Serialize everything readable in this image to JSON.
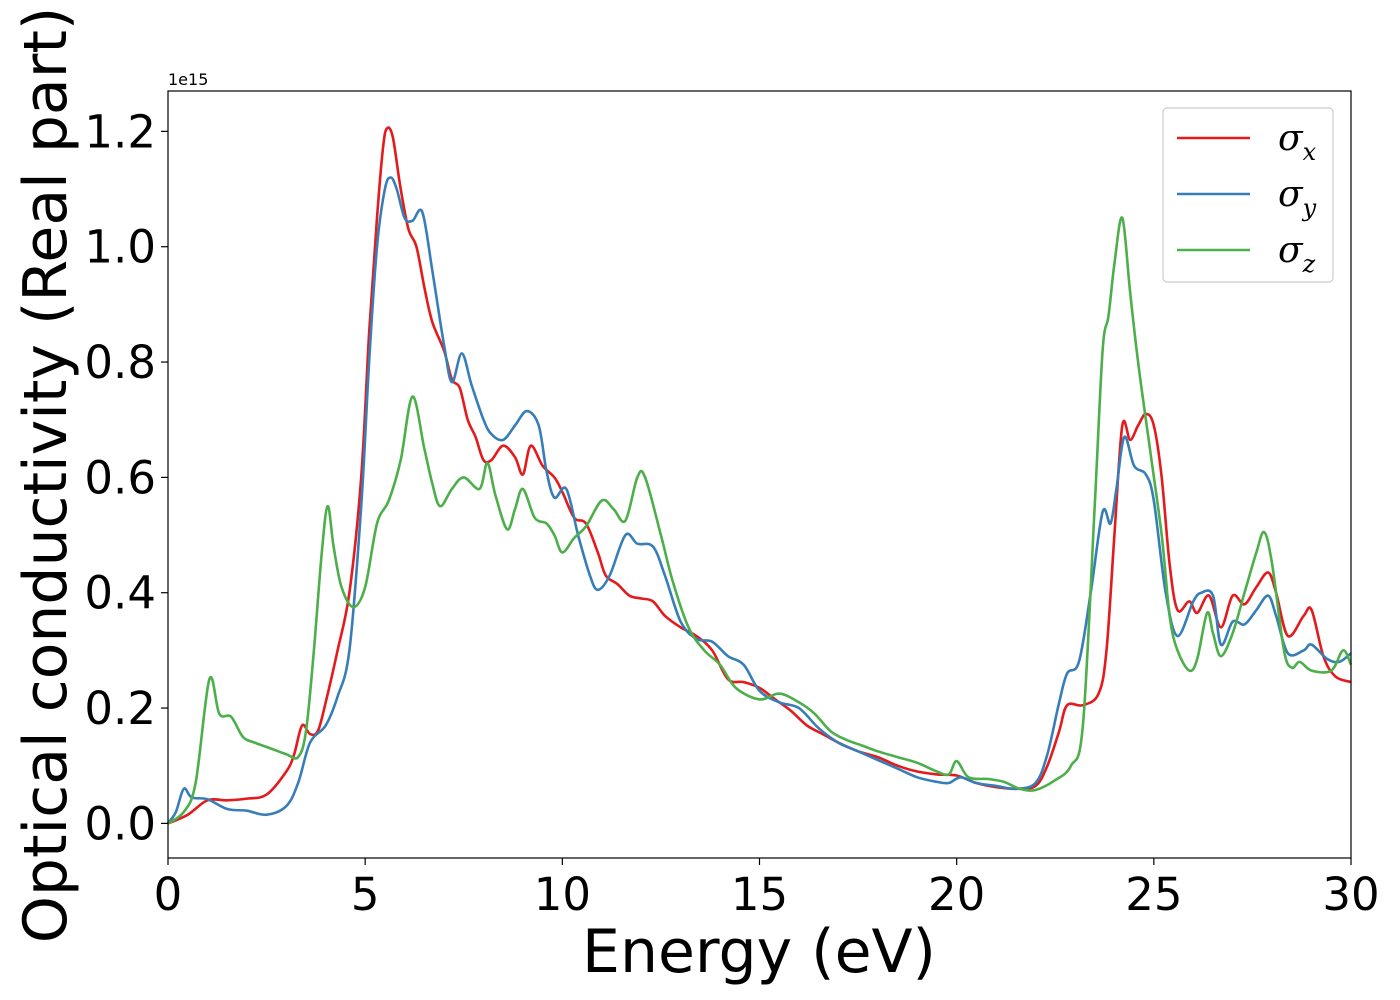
{
  "chart_data": {
    "type": "line",
    "title": "",
    "xlabel": "Energy (eV)",
    "ylabel": "Optical conductivity (Real part)",
    "y_offset_label": "1e15",
    "xlim": [
      0,
      30
    ],
    "ylim": [
      -0.06,
      1.27
    ],
    "grid": false,
    "legend_position": "top-right",
    "x_ticks": [
      0,
      5,
      10,
      15,
      20,
      25,
      30
    ],
    "x_tick_labels": [
      "0",
      "5",
      "10",
      "15",
      "20",
      "25",
      "30"
    ],
    "y_ticks": [
      0.0,
      0.2,
      0.4,
      0.6,
      0.8,
      1.0,
      1.2
    ],
    "y_tick_labels": [
      "0.0",
      "0.2",
      "0.4",
      "0.6",
      "0.8",
      "1.0",
      "1.2"
    ],
    "series": [
      {
        "name": "σx",
        "symbol": "σ",
        "subscript": "x",
        "color": "#e41a1c",
        "points": [
          [
            0,
            0
          ],
          [
            0.5,
            0.015
          ],
          [
            1,
            0.04
          ],
          [
            1.5,
            0.04
          ],
          [
            2,
            0.043
          ],
          [
            2.5,
            0.05
          ],
          [
            3,
            0.09
          ],
          [
            3.2,
            0.12
          ],
          [
            3.4,
            0.17
          ],
          [
            3.6,
            0.155
          ],
          [
            3.8,
            0.16
          ],
          [
            4,
            0.21
          ],
          [
            4.3,
            0.3
          ],
          [
            4.6,
            0.4
          ],
          [
            4.9,
            0.6
          ],
          [
            5.1,
            0.85
          ],
          [
            5.3,
            1.05
          ],
          [
            5.45,
            1.17
          ],
          [
            5.55,
            1.205
          ],
          [
            5.7,
            1.19
          ],
          [
            5.9,
            1.1
          ],
          [
            6.1,
            1.03
          ],
          [
            6.3,
            1.0
          ],
          [
            6.5,
            0.93
          ],
          [
            6.7,
            0.87
          ],
          [
            7,
            0.82
          ],
          [
            7.2,
            0.77
          ],
          [
            7.4,
            0.755
          ],
          [
            7.6,
            0.7
          ],
          [
            7.8,
            0.67
          ],
          [
            8,
            0.63
          ],
          [
            8.2,
            0.63
          ],
          [
            8.5,
            0.655
          ],
          [
            8.8,
            0.635
          ],
          [
            9,
            0.605
          ],
          [
            9.2,
            0.655
          ],
          [
            9.5,
            0.62
          ],
          [
            9.8,
            0.6
          ],
          [
            10,
            0.575
          ],
          [
            10.3,
            0.53
          ],
          [
            10.6,
            0.52
          ],
          [
            10.9,
            0.47
          ],
          [
            11.1,
            0.43
          ],
          [
            11.4,
            0.415
          ],
          [
            11.7,
            0.395
          ],
          [
            12,
            0.39
          ],
          [
            12.3,
            0.385
          ],
          [
            12.6,
            0.36
          ],
          [
            13,
            0.34
          ],
          [
            13.4,
            0.325
          ],
          [
            13.8,
            0.3
          ],
          [
            14.2,
            0.25
          ],
          [
            14.6,
            0.245
          ],
          [
            15,
            0.235
          ],
          [
            15.4,
            0.215
          ],
          [
            15.8,
            0.195
          ],
          [
            16.2,
            0.17
          ],
          [
            16.6,
            0.155
          ],
          [
            17,
            0.14
          ],
          [
            17.5,
            0.125
          ],
          [
            18,
            0.115
          ],
          [
            18.5,
            0.1
          ],
          [
            19,
            0.09
          ],
          [
            19.5,
            0.085
          ],
          [
            20,
            0.083
          ],
          [
            20.5,
            0.07
          ],
          [
            21,
            0.063
          ],
          [
            21.5,
            0.06
          ],
          [
            22,
            0.065
          ],
          [
            22.3,
            0.1
          ],
          [
            22.6,
            0.16
          ],
          [
            22.8,
            0.205
          ],
          [
            23.2,
            0.205
          ],
          [
            23.6,
            0.225
          ],
          [
            23.8,
            0.3
          ],
          [
            24,
            0.5
          ],
          [
            24.2,
            0.69
          ],
          [
            24.4,
            0.665
          ],
          [
            24.6,
            0.69
          ],
          [
            24.8,
            0.71
          ],
          [
            25,
            0.69
          ],
          [
            25.2,
            0.6
          ],
          [
            25.4,
            0.45
          ],
          [
            25.6,
            0.37
          ],
          [
            25.9,
            0.385
          ],
          [
            26.1,
            0.365
          ],
          [
            26.4,
            0.395
          ],
          [
            26.7,
            0.34
          ],
          [
            27,
            0.395
          ],
          [
            27.3,
            0.38
          ],
          [
            27.6,
            0.41
          ],
          [
            27.9,
            0.435
          ],
          [
            28.1,
            0.4
          ],
          [
            28.4,
            0.325
          ],
          [
            28.8,
            0.36
          ],
          [
            29,
            0.37
          ],
          [
            29.3,
            0.29
          ],
          [
            29.6,
            0.255
          ],
          [
            30,
            0.245
          ]
        ]
      },
      {
        "name": "σy",
        "symbol": "σ",
        "subscript": "y",
        "color": "#377eb8",
        "points": [
          [
            0,
            0
          ],
          [
            0.2,
            0.02
          ],
          [
            0.4,
            0.06
          ],
          [
            0.6,
            0.045
          ],
          [
            1,
            0.042
          ],
          [
            1.5,
            0.025
          ],
          [
            2,
            0.022
          ],
          [
            2.5,
            0.015
          ],
          [
            3,
            0.03
          ],
          [
            3.3,
            0.07
          ],
          [
            3.6,
            0.14
          ],
          [
            4,
            0.17
          ],
          [
            4.3,
            0.22
          ],
          [
            4.6,
            0.3
          ],
          [
            4.9,
            0.55
          ],
          [
            5.1,
            0.8
          ],
          [
            5.3,
            1.0
          ],
          [
            5.5,
            1.1
          ],
          [
            5.65,
            1.12
          ],
          [
            5.8,
            1.1
          ],
          [
            6,
            1.05
          ],
          [
            6.2,
            1.045
          ],
          [
            6.45,
            1.06
          ],
          [
            6.7,
            0.96
          ],
          [
            7,
            0.83
          ],
          [
            7.2,
            0.765
          ],
          [
            7.45,
            0.815
          ],
          [
            7.7,
            0.76
          ],
          [
            8,
            0.7
          ],
          [
            8.2,
            0.675
          ],
          [
            8.5,
            0.665
          ],
          [
            8.8,
            0.69
          ],
          [
            9.1,
            0.715
          ],
          [
            9.4,
            0.69
          ],
          [
            9.6,
            0.61
          ],
          [
            9.8,
            0.565
          ],
          [
            10.1,
            0.58
          ],
          [
            10.4,
            0.5
          ],
          [
            10.7,
            0.43
          ],
          [
            10.9,
            0.405
          ],
          [
            11.2,
            0.43
          ],
          [
            11.6,
            0.5
          ],
          [
            11.9,
            0.485
          ],
          [
            12.3,
            0.48
          ],
          [
            12.6,
            0.43
          ],
          [
            13,
            0.35
          ],
          [
            13.4,
            0.32
          ],
          [
            13.8,
            0.315
          ],
          [
            14.2,
            0.29
          ],
          [
            14.6,
            0.275
          ],
          [
            15,
            0.23
          ],
          [
            15.5,
            0.21
          ],
          [
            16,
            0.2
          ],
          [
            16.5,
            0.165
          ],
          [
            17,
            0.14
          ],
          [
            17.5,
            0.125
          ],
          [
            18,
            0.11
          ],
          [
            18.5,
            0.095
          ],
          [
            19,
            0.08
          ],
          [
            19.5,
            0.072
          ],
          [
            19.8,
            0.07
          ],
          [
            20.1,
            0.08
          ],
          [
            20.5,
            0.07
          ],
          [
            21,
            0.065
          ],
          [
            21.5,
            0.06
          ],
          [
            22,
            0.07
          ],
          [
            22.3,
            0.12
          ],
          [
            22.6,
            0.21
          ],
          [
            22.8,
            0.26
          ],
          [
            23.1,
            0.28
          ],
          [
            23.4,
            0.4
          ],
          [
            23.7,
            0.54
          ],
          [
            23.9,
            0.52
          ],
          [
            24.05,
            0.58
          ],
          [
            24.25,
            0.67
          ],
          [
            24.5,
            0.62
          ],
          [
            24.8,
            0.605
          ],
          [
            25,
            0.56
          ],
          [
            25.3,
            0.4
          ],
          [
            25.6,
            0.325
          ],
          [
            26,
            0.385
          ],
          [
            26.2,
            0.4
          ],
          [
            26.5,
            0.395
          ],
          [
            26.7,
            0.31
          ],
          [
            27,
            0.35
          ],
          [
            27.3,
            0.345
          ],
          [
            27.6,
            0.37
          ],
          [
            27.9,
            0.395
          ],
          [
            28.1,
            0.36
          ],
          [
            28.4,
            0.295
          ],
          [
            28.8,
            0.3
          ],
          [
            29,
            0.31
          ],
          [
            29.4,
            0.285
          ],
          [
            29.7,
            0.28
          ],
          [
            30,
            0.295
          ]
        ]
      },
      {
        "name": "σz",
        "symbol": "σ",
        "subscript": "z",
        "color": "#4daf4a",
        "points": [
          [
            0,
            0
          ],
          [
            0.4,
            0.02
          ],
          [
            0.7,
            0.07
          ],
          [
            1.05,
            0.25
          ],
          [
            1.3,
            0.19
          ],
          [
            1.6,
            0.185
          ],
          [
            1.9,
            0.15
          ],
          [
            2.2,
            0.14
          ],
          [
            2.6,
            0.13
          ],
          [
            3,
            0.12
          ],
          [
            3.3,
            0.115
          ],
          [
            3.5,
            0.16
          ],
          [
            3.7,
            0.3
          ],
          [
            3.9,
            0.47
          ],
          [
            4.05,
            0.55
          ],
          [
            4.2,
            0.48
          ],
          [
            4.4,
            0.41
          ],
          [
            4.7,
            0.375
          ],
          [
            5,
            0.41
          ],
          [
            5.3,
            0.52
          ],
          [
            5.6,
            0.56
          ],
          [
            5.9,
            0.63
          ],
          [
            6.2,
            0.74
          ],
          [
            6.5,
            0.65
          ],
          [
            6.7,
            0.59
          ],
          [
            6.9,
            0.55
          ],
          [
            7.2,
            0.58
          ],
          [
            7.5,
            0.6
          ],
          [
            7.9,
            0.58
          ],
          [
            8.1,
            0.625
          ],
          [
            8.3,
            0.57
          ],
          [
            8.6,
            0.51
          ],
          [
            8.8,
            0.545
          ],
          [
            9,
            0.58
          ],
          [
            9.3,
            0.53
          ],
          [
            9.6,
            0.52
          ],
          [
            9.8,
            0.5
          ],
          [
            10,
            0.47
          ],
          [
            10.3,
            0.495
          ],
          [
            10.6,
            0.515
          ],
          [
            11,
            0.56
          ],
          [
            11.3,
            0.545
          ],
          [
            11.6,
            0.525
          ],
          [
            11.9,
            0.6
          ],
          [
            12.1,
            0.6
          ],
          [
            12.5,
            0.5
          ],
          [
            12.8,
            0.42
          ],
          [
            13.2,
            0.34
          ],
          [
            13.6,
            0.3
          ],
          [
            14,
            0.275
          ],
          [
            14.4,
            0.235
          ],
          [
            15,
            0.215
          ],
          [
            15.5,
            0.225
          ],
          [
            16,
            0.21
          ],
          [
            16.4,
            0.19
          ],
          [
            16.8,
            0.16
          ],
          [
            17.2,
            0.145
          ],
          [
            17.6,
            0.135
          ],
          [
            18,
            0.125
          ],
          [
            18.5,
            0.115
          ],
          [
            19,
            0.105
          ],
          [
            19.5,
            0.09
          ],
          [
            19.8,
            0.085
          ],
          [
            20,
            0.108
          ],
          [
            20.3,
            0.08
          ],
          [
            20.8,
            0.077
          ],
          [
            21.2,
            0.072
          ],
          [
            21.6,
            0.06
          ],
          [
            22,
            0.058
          ],
          [
            22.5,
            0.075
          ],
          [
            22.9,
            0.1
          ],
          [
            23.2,
            0.17
          ],
          [
            23.5,
            0.55
          ],
          [
            23.7,
            0.82
          ],
          [
            23.85,
            0.88
          ],
          [
            24,
            0.97
          ],
          [
            24.2,
            1.05
          ],
          [
            24.4,
            0.92
          ],
          [
            24.6,
            0.8
          ],
          [
            24.9,
            0.65
          ],
          [
            25.2,
            0.5
          ],
          [
            25.4,
            0.36
          ],
          [
            25.6,
            0.3
          ],
          [
            25.9,
            0.265
          ],
          [
            26.1,
            0.285
          ],
          [
            26.35,
            0.365
          ],
          [
            26.5,
            0.33
          ],
          [
            26.7,
            0.29
          ],
          [
            27,
            0.33
          ],
          [
            27.3,
            0.4
          ],
          [
            27.6,
            0.47
          ],
          [
            27.8,
            0.505
          ],
          [
            28,
            0.45
          ],
          [
            28.3,
            0.3
          ],
          [
            28.5,
            0.27
          ],
          [
            28.7,
            0.28
          ],
          [
            29,
            0.265
          ],
          [
            29.5,
            0.265
          ],
          [
            29.8,
            0.3
          ],
          [
            30,
            0.275
          ]
        ]
      }
    ]
  }
}
